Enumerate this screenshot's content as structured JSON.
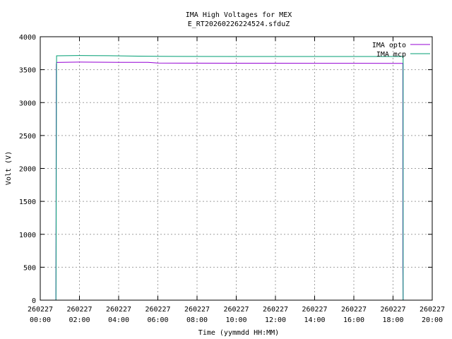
{
  "chart_data": {
    "type": "line",
    "title": [
      "IMA High Voltages for MEX",
      "E_RT20260226224524.sfduZ"
    ],
    "xlabel": "Time (yymmdd HH:MM)",
    "ylabel": "Volt (V)",
    "xlim": [
      "2026-02-27 00:00",
      "2026-02-27 20:00"
    ],
    "ylim": [
      0,
      4000
    ],
    "yticks": [
      0,
      500,
      1000,
      1500,
      2000,
      2500,
      3000,
      3500,
      4000
    ],
    "xticks": [
      {
        "date": "260227",
        "time": "00:00"
      },
      {
        "date": "260227",
        "time": "02:00"
      },
      {
        "date": "260227",
        "time": "04:00"
      },
      {
        "date": "260227",
        "time": "06:00"
      },
      {
        "date": "260227",
        "time": "08:00"
      },
      {
        "date": "260227",
        "time": "10:00"
      },
      {
        "date": "260227",
        "time": "12:00"
      },
      {
        "date": "260227",
        "time": "14:00"
      },
      {
        "date": "260227",
        "time": "16:00"
      },
      {
        "date": "260227",
        "time": "18:00"
      },
      {
        "date": "260227",
        "time": "20:00"
      }
    ],
    "grid": true,
    "legend_position": "top-right",
    "series": [
      {
        "name": "IMA opto",
        "color": "#9400d3",
        "points": [
          [
            "2026-02-27 00:48",
            0
          ],
          [
            "2026-02-27 00:48",
            200
          ],
          [
            "2026-02-27 00:48",
            0
          ],
          [
            "2026-02-27 00:49",
            3580
          ],
          [
            "2026-02-27 00:50",
            3610
          ],
          [
            "2026-02-27 02:00",
            3615
          ],
          [
            "2026-02-27 04:00",
            3612
          ],
          [
            "2026-02-27 05:30",
            3612
          ],
          [
            "2026-02-27 06:00",
            3600
          ],
          [
            "2026-02-27 10:00",
            3598
          ],
          [
            "2026-02-27 14:00",
            3597
          ],
          [
            "2026-02-27 18:30",
            3596
          ],
          [
            "2026-02-27 18:30",
            500
          ],
          [
            "2026-02-27 18:31",
            0
          ]
        ]
      },
      {
        "name": "IMA mcp",
        "color": "#009e73",
        "points": [
          [
            "2026-02-27 00:48",
            0
          ],
          [
            "2026-02-27 00:50",
            3710
          ],
          [
            "2026-02-27 02:00",
            3715
          ],
          [
            "2026-02-27 03:30",
            3712
          ],
          [
            "2026-02-27 05:00",
            3705
          ],
          [
            "2026-02-27 06:00",
            3702
          ],
          [
            "2026-02-27 10:00",
            3700
          ],
          [
            "2026-02-27 14:00",
            3700
          ],
          [
            "2026-02-27 18:30",
            3700
          ],
          [
            "2026-02-27 18:31",
            3700
          ],
          [
            "2026-02-27 18:31",
            0
          ]
        ]
      }
    ]
  }
}
